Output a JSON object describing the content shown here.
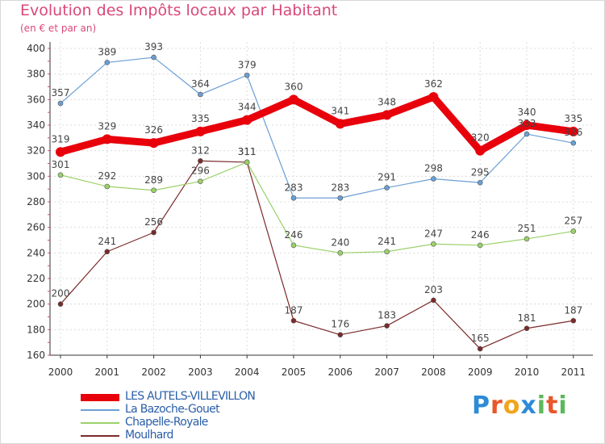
{
  "title": "Evolution des Impôts locaux par Habitant",
  "subtitle": "(en € et par an)",
  "logo": {
    "letters": [
      "P",
      "r",
      "o",
      "x",
      "i",
      "t",
      "i"
    ],
    "colors": [
      "#2e8bd6",
      "#e8572a",
      "#f0a51c",
      "#2e8bd6",
      "#5cb85c",
      "#e8572a",
      "#5cb85c"
    ]
  },
  "chart_data": {
    "type": "line",
    "title": "Evolution des Impôts locaux par Habitant",
    "ylabel": "(en € et par an)",
    "xlabel": "",
    "categories": [
      "2000",
      "2001",
      "2002",
      "2003",
      "2004",
      "2005",
      "2006",
      "2007",
      "2008",
      "2009",
      "2010",
      "2011"
    ],
    "ylim": [
      160,
      400
    ],
    "yticks": [
      "160",
      "180",
      "200",
      "220",
      "240",
      "260",
      "280",
      "300",
      "320",
      "340",
      "360",
      "380",
      "400"
    ],
    "grid": true,
    "series": [
      {
        "name": "LES AUTELS-VILLEVILLON",
        "color": "#e8000b",
        "values": [
          319,
          329,
          326,
          335,
          344,
          360,
          341,
          348,
          362,
          320,
          340,
          335
        ]
      },
      {
        "name": "La Bazoche-Gouet",
        "color": "#6b9fd4",
        "values": [
          357,
          389,
          393,
          364,
          379,
          283,
          283,
          291,
          298,
          295,
          333,
          326
        ]
      },
      {
        "name": "Chapelle-Royale",
        "color": "#9bd16a",
        "values": [
          301,
          292,
          289,
          296,
          311,
          246,
          240,
          241,
          247,
          246,
          251,
          257
        ]
      },
      {
        "name": "Moulhard",
        "color": "#7b2a2a",
        "values": [
          200,
          241,
          256,
          312,
          311,
          187,
          176,
          183,
          203,
          165,
          181,
          187
        ]
      }
    ],
    "data_labels": [
      [
        "319",
        "329",
        "326",
        "335",
        "344",
        "360",
        "341",
        "348",
        "362",
        "320",
        "340",
        "335"
      ],
      [
        "357",
        "389",
        "393",
        "364",
        "379",
        "283",
        "283",
        "291",
        "298",
        "295",
        "333",
        "326"
      ],
      [
        "301",
        "292",
        "289",
        "296",
        "311",
        "246",
        "240",
        "241",
        "247",
        "246",
        "251",
        "257"
      ],
      [
        "200",
        "241",
        "256",
        "312",
        "311",
        "187",
        "176",
        "183",
        "203",
        "165",
        "181",
        "187"
      ]
    ]
  }
}
